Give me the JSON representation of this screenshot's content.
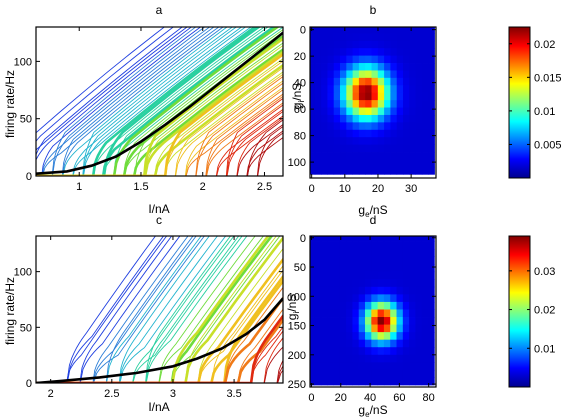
{
  "chart_data": [
    {
      "panel": "a",
      "type": "line",
      "title": "a",
      "xlabel": "I/nA",
      "ylabel": "firing rate/Hz",
      "xlim": [
        0.65,
        2.65
      ],
      "ylim": [
        0,
        130
      ],
      "xticks": [
        1,
        1.5,
        2,
        2.5
      ],
      "xtick_labels": [
        "1",
        "1.5",
        "2",
        "2.5"
      ],
      "yticks": [
        0,
        50,
        100
      ],
      "ytick_labels": [
        "0",
        "50",
        "100"
      ],
      "family": {
        "count": 60,
        "onset_min": 0.62,
        "onset_max": 2.58,
        "rise_range": 0.15,
        "jump_min": 20,
        "jump_max": 38,
        "slope_start": 95,
        "slope_end": 80,
        "thick_band": [
          0.3,
          0.62
        ],
        "colors": [
          "#1f3fe0",
          "#2c7fd8",
          "#22b4cf",
          "#28d0a0",
          "#6fdc3c",
          "#c8e02a",
          "#f0c020",
          "#f07a18",
          "#e02a10",
          "#b01010"
        ]
      },
      "mean_curve": {
        "x": [
          0.65,
          0.9,
          1.1,
          1.3,
          1.5,
          1.7,
          1.9,
          2.1,
          2.3,
          2.5,
          2.65
        ],
        "y": [
          2,
          4,
          9,
          17,
          30,
          45,
          61,
          78,
          95,
          112,
          125
        ]
      }
    },
    {
      "panel": "b",
      "type": "heatmap",
      "title": "b",
      "xlabel": "g_e/nS",
      "ylabel": "g_i/nS",
      "xlim": [
        -0.5,
        37.5
      ],
      "ylim": [
        112,
        -2
      ],
      "xticks": [
        0,
        10,
        20,
        30
      ],
      "xtick_labels": [
        "0",
        "10",
        "20",
        "30"
      ],
      "yticks": [
        0,
        20,
        40,
        60,
        80,
        100
      ],
      "ytick_labels": [
        "0",
        "20",
        "40",
        "60",
        "80",
        "100"
      ],
      "grid": {
        "nx": 20,
        "ny": 20,
        "x0": 0,
        "dx": 1.9,
        "y0": 0,
        "dy": 5.6
      },
      "gaussian": {
        "cx": 16.5,
        "cy": 48,
        "sx": 4.5,
        "sy": 13,
        "peak": 0.0225
      },
      "colorbar": {
        "min": 0,
        "max": 0.0225,
        "ticks": [
          0.005,
          0.01,
          0.015,
          0.02
        ],
        "tick_labels": [
          "0.005",
          "0.01",
          "0.015",
          "0.02"
        ]
      }
    },
    {
      "panel": "c",
      "type": "line",
      "title": "c",
      "xlabel": "I/nA",
      "ylabel": "firing rate/Hz",
      "xlim": [
        1.88,
        3.9
      ],
      "ylim": [
        0,
        132
      ],
      "xticks": [
        2,
        2.5,
        3,
        3.5
      ],
      "xtick_labels": [
        "2",
        "2.5",
        "3",
        "3.5"
      ],
      "yticks": [
        0,
        50,
        100
      ],
      "ytick_labels": [
        "0",
        "50",
        "100"
      ],
      "family": {
        "count": 44,
        "onset_min": 2.25,
        "onset_max": 4.1,
        "rise_range": 0.2,
        "jump_min": 25,
        "jump_max": 45,
        "slope_start": 160,
        "slope_end": 150,
        "thick_band": [
          0.45,
          0.85
        ],
        "colors": [
          "#1f3fe0",
          "#2c7fd8",
          "#22b4cf",
          "#28d0a0",
          "#6fdc3c",
          "#c8e02a",
          "#f0c020",
          "#f07a18",
          "#e02a10",
          "#b01010"
        ]
      },
      "mean_curve": {
        "x": [
          1.88,
          2.1,
          2.4,
          2.7,
          3.0,
          3.2,
          3.4,
          3.6,
          3.75,
          3.9
        ],
        "y": [
          0,
          2,
          5,
          9,
          15,
          22,
          31,
          44,
          57,
          76
        ]
      }
    },
    {
      "panel": "d",
      "type": "heatmap",
      "title": "d",
      "xlabel": "g_e/nS",
      "ylabel": "g_i/nS",
      "xlim": [
        -1,
        85
      ],
      "ylim": [
        255,
        -3
      ],
      "xticks": [
        0,
        20,
        40,
        60,
        80
      ],
      "xtick_labels": [
        "0",
        "20",
        "40",
        "60",
        "80"
      ],
      "yticks": [
        0,
        50,
        100,
        150,
        200,
        250
      ],
      "ytick_labels": [
        "0",
        "50",
        "100",
        "150",
        "200",
        "250"
      ],
      "grid": {
        "nx": 20,
        "ny": 20,
        "x0": 0,
        "dx": 4.3,
        "y0": 0,
        "dy": 12.9
      },
      "gaussian": {
        "cx": 48,
        "cy": 143,
        "sx": 7.5,
        "sy": 22,
        "peak": 0.039
      },
      "colorbar": {
        "min": 0,
        "max": 0.039,
        "ticks": [
          0.01,
          0.02,
          0.03
        ],
        "tick_labels": [
          "0.01",
          "0.02",
          "0.03"
        ]
      }
    }
  ]
}
